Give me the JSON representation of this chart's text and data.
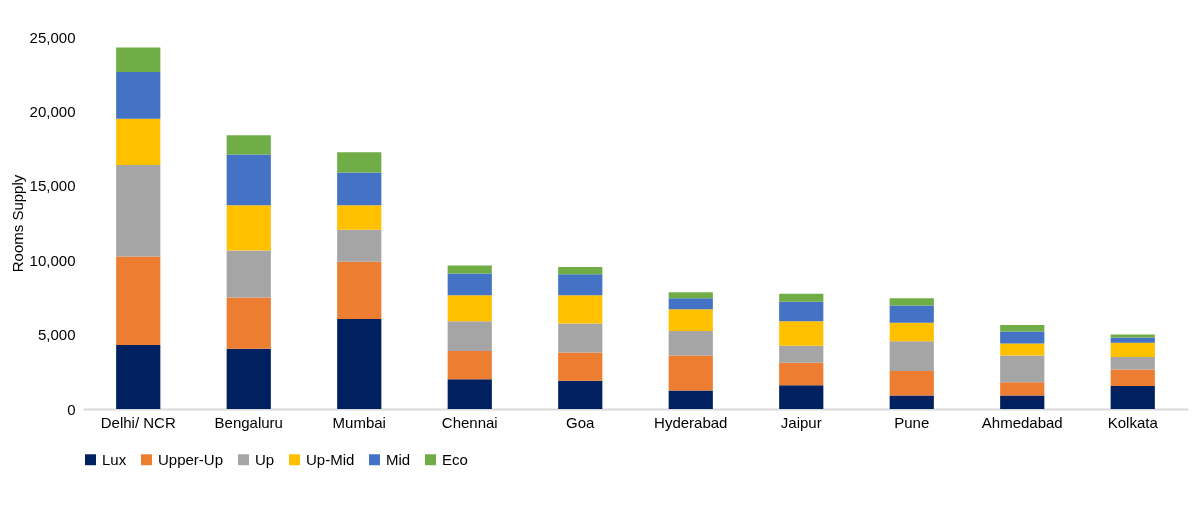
{
  "chart_data": {
    "type": "bar",
    "stacked": true,
    "ylabel": "Rooms Supply",
    "categories": [
      "Delhi/ NCR",
      "Bengaluru",
      "Mumbai",
      "Chennai",
      "Goa",
      "Hyderabad",
      "Jaipur",
      "Pune",
      "Ahmedabad",
      "Kolkata"
    ],
    "series": [
      {
        "name": "Lux",
        "color": "#002060",
        "values": [
          4300,
          4050,
          6050,
          2000,
          1900,
          1250,
          1600,
          900,
          900,
          1550
        ]
      },
      {
        "name": "Upper-Up",
        "color": "#ed7d31",
        "values": [
          5950,
          3450,
          3850,
          1900,
          1900,
          2350,
          1500,
          1650,
          900,
          1100
        ]
      },
      {
        "name": "Up",
        "color": "#a5a5a5",
        "values": [
          6150,
          3150,
          2150,
          2000,
          1950,
          1650,
          1150,
          2000,
          1800,
          850
        ]
      },
      {
        "name": "Up-Mid",
        "color": "#ffc000",
        "values": [
          3100,
          3050,
          1650,
          1750,
          1900,
          1450,
          1650,
          1250,
          800,
          950
        ]
      },
      {
        "name": "Mid",
        "color": "#4472c4",
        "values": [
          3150,
          3400,
          2200,
          1450,
          1400,
          750,
          1300,
          1150,
          800,
          350
        ]
      },
      {
        "name": "Eco",
        "color": "#70ad47",
        "values": [
          1650,
          1300,
          1350,
          550,
          500,
          400,
          550,
          500,
          450,
          200
        ]
      }
    ],
    "ylim": [
      0,
      25000
    ],
    "yticks": [
      {
        "value": 0,
        "label": "0"
      },
      {
        "value": 5000,
        "label": "5,000"
      },
      {
        "value": 10000,
        "label": "10,000"
      },
      {
        "value": 15000,
        "label": "15,000"
      },
      {
        "value": 20000,
        "label": "20,000"
      },
      {
        "value": 25000,
        "label": "25,000"
      }
    ],
    "grid": false,
    "legend": "bottom"
  }
}
